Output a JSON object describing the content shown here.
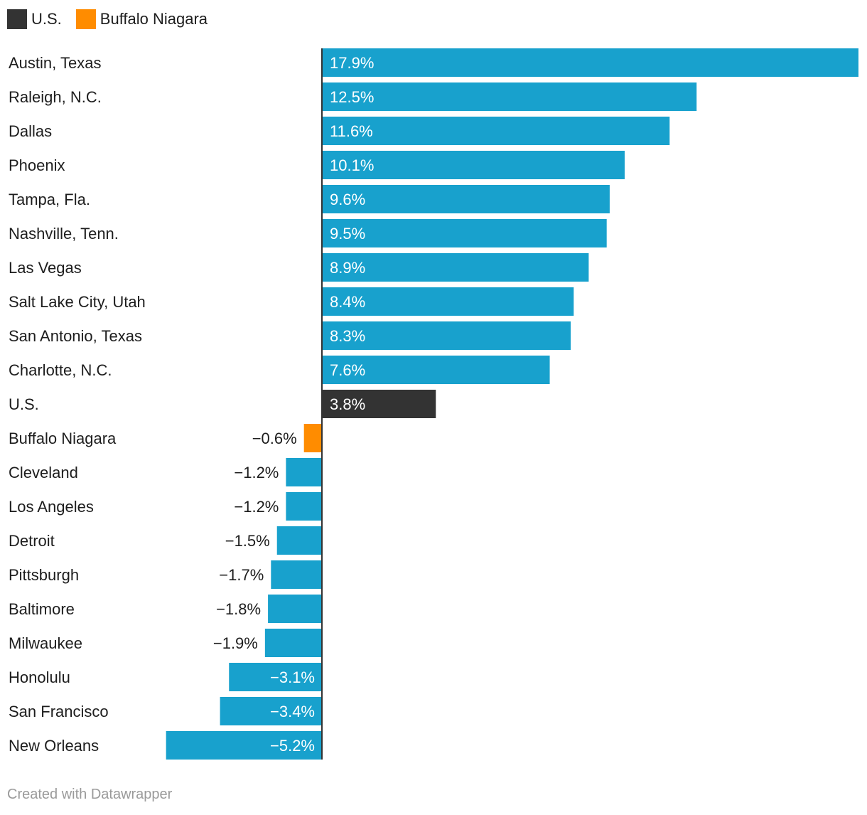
{
  "legend": [
    {
      "label": "U.S.",
      "color": "#333333"
    },
    {
      "label": "Buffalo Niagara",
      "color": "#ff8c00"
    }
  ],
  "colors": {
    "default": "#18a1cd",
    "us": "#333333",
    "buffalo": "#ff8c00"
  },
  "chart_data": {
    "type": "bar",
    "orientation": "horizontal",
    "title": "",
    "xlabel": "",
    "ylabel": "",
    "unit": "%",
    "xlim": [
      -5.2,
      17.9
    ],
    "grid": false,
    "legend_position": "top-left",
    "categories": [
      "Austin, Texas",
      "Raleigh, N.C.",
      "Dallas",
      "Phoenix",
      "Tampa, Fla.",
      "Nashville, Tenn.",
      "Las Vegas",
      "Salt Lake City, Utah",
      "San Antonio, Texas",
      "Charlotte, N.C.",
      "U.S.",
      "Buffalo Niagara",
      "Cleveland",
      "Los Angeles",
      "Detroit",
      "Pittsburgh",
      "Baltimore",
      "Milwaukee",
      "Honolulu",
      "San Francisco",
      "New Orleans"
    ],
    "values": [
      17.9,
      12.5,
      11.6,
      10.1,
      9.6,
      9.5,
      8.9,
      8.4,
      8.3,
      7.6,
      3.8,
      -0.6,
      -1.2,
      -1.2,
      -1.5,
      -1.7,
      -1.8,
      -1.9,
      -3.1,
      -3.4,
      -5.2
    ],
    "value_labels": [
      "17.9%",
      "12.5%",
      "11.6%",
      "10.1%",
      "9.6%",
      "9.5%",
      "8.9%",
      "8.4%",
      "8.3%",
      "7.6%",
      "3.8%",
      "−0.6%",
      "−1.2%",
      "−1.2%",
      "−1.5%",
      "−1.7%",
      "−1.8%",
      "−1.9%",
      "−3.1%",
      "−3.4%",
      "−5.2%"
    ],
    "highlights": {
      "U.S.": "us",
      "Buffalo Niagara": "buffalo"
    }
  },
  "footer": "Created with Datawrapper"
}
